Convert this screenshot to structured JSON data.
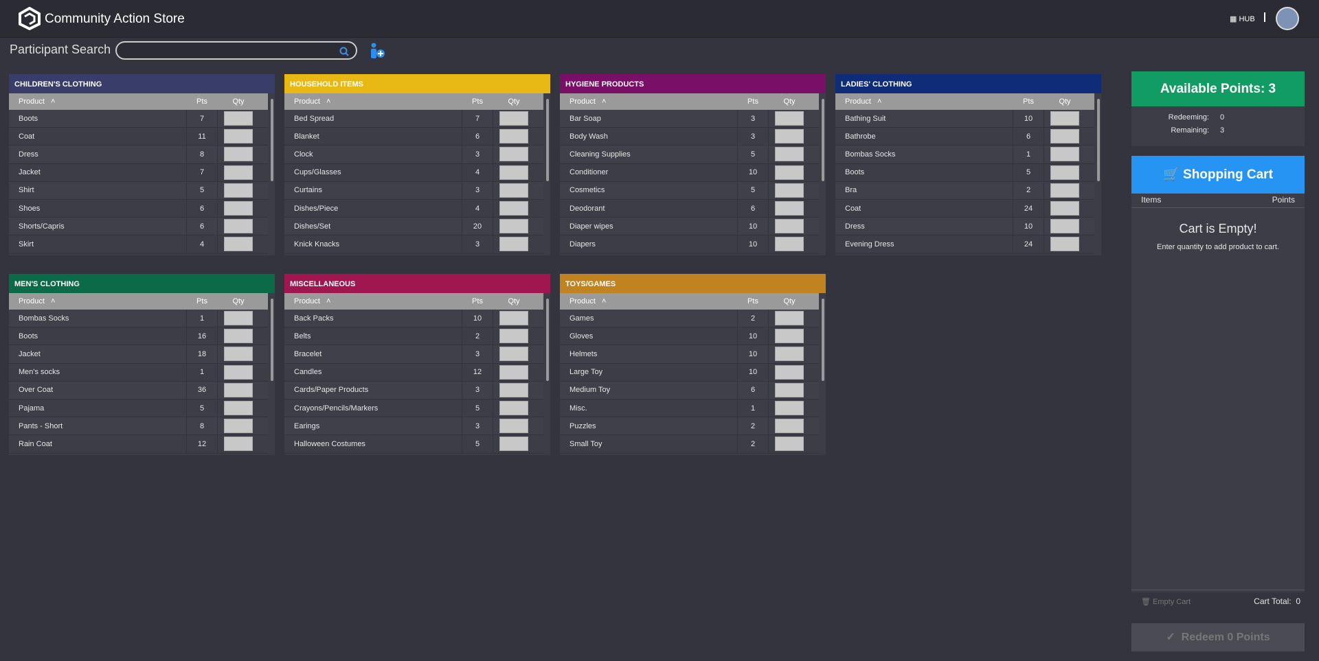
{
  "header": {
    "title": "Community Action Store",
    "hub": "HUB"
  },
  "search": {
    "label": "Participant Search"
  },
  "columns": [
    "Product",
    "Pts",
    "Qty"
  ],
  "panels": [
    {
      "title": "CHILDREN'S CLOTHING",
      "color": "#393d69",
      "rows": [
        [
          "Boots",
          7
        ],
        [
          "Coat",
          11
        ],
        [
          "Dress",
          8
        ],
        [
          "Jacket",
          7
        ],
        [
          "Shirt",
          5
        ],
        [
          "Shoes",
          6
        ],
        [
          "Shorts/Capris",
          6
        ],
        [
          "Skirt",
          4
        ]
      ]
    },
    {
      "title": "HOUSEHOLD ITEMS",
      "color": "#e8b814",
      "rows": [
        [
          "Bed Spread",
          7
        ],
        [
          "Blanket",
          6
        ],
        [
          "Clock",
          3
        ],
        [
          "Cups/Glasses",
          4
        ],
        [
          "Curtains",
          3
        ],
        [
          "Dishes/Piece",
          4
        ],
        [
          "Dishes/Set",
          20
        ],
        [
          "Knick Knacks",
          3
        ]
      ]
    },
    {
      "title": "HYGIENE PRODUCTS",
      "color": "#7a0f68",
      "rows": [
        [
          "Bar Soap",
          3
        ],
        [
          "Body Wash",
          3
        ],
        [
          "Cleaning Supplies",
          5
        ],
        [
          "Conditioner",
          10
        ],
        [
          "Cosmetics",
          5
        ],
        [
          "Deodorant",
          6
        ],
        [
          "Diaper wipes",
          10
        ],
        [
          "Diapers",
          10
        ]
      ]
    },
    {
      "title": "LADIES' CLOTHING",
      "color": "#0f2c78",
      "rows": [
        [
          "Bathing Suit",
          10
        ],
        [
          "Bathrobe",
          6
        ],
        [
          "Bombas Socks",
          1
        ],
        [
          "Boots",
          5
        ],
        [
          "Bra",
          2
        ],
        [
          "Coat",
          24
        ],
        [
          "Dress",
          10
        ],
        [
          "Evening Dress",
          24
        ]
      ]
    },
    {
      "title": "MEN'S CLOTHING",
      "color": "#0b6a47",
      "rows": [
        [
          "Bombas Socks",
          1
        ],
        [
          "Boots",
          16
        ],
        [
          "Jacket",
          18
        ],
        [
          "Men's socks",
          1
        ],
        [
          "Over Coat",
          36
        ],
        [
          "Pajama",
          5
        ],
        [
          "Pants - Short",
          8
        ],
        [
          "Rain Coat",
          12
        ]
      ]
    },
    {
      "title": "MISCELLANEOUS",
      "color": "#a0174f",
      "rows": [
        [
          "Back Packs",
          10
        ],
        [
          "Belts",
          2
        ],
        [
          "Bracelet",
          3
        ],
        [
          "Candles",
          12
        ],
        [
          "Cards/Paper Products",
          3
        ],
        [
          "Crayons/Pencils/Markers",
          5
        ],
        [
          "Earings",
          3
        ],
        [
          "Halloween Costumes",
          5
        ]
      ]
    },
    {
      "title": "TOYS/GAMES",
      "color": "#c1831f",
      "rows": [
        [
          "Games",
          2
        ],
        [
          "Gloves",
          10
        ],
        [
          "Helmets",
          10
        ],
        [
          "Large Toy",
          10
        ],
        [
          "Medium Toy",
          6
        ],
        [
          "Misc.",
          1
        ],
        [
          "Puzzles",
          2
        ],
        [
          "Small Toy",
          2
        ]
      ]
    }
  ],
  "points": {
    "title": "Available Points: 3",
    "redeeming_label": "Redeeming:",
    "redeeming": 0,
    "remaining_label": "Remaining:",
    "remaining": 3
  },
  "cart": {
    "title": "Shopping Cart",
    "items": "Items",
    "points": "Points",
    "empty_title": "Cart is Empty!",
    "empty_text": "Enter quantity to add product to cart.",
    "empty_button": "Empty Cart",
    "total_label": "Cart Total:",
    "total": 0,
    "redeem": "Redeem 0 Points"
  }
}
